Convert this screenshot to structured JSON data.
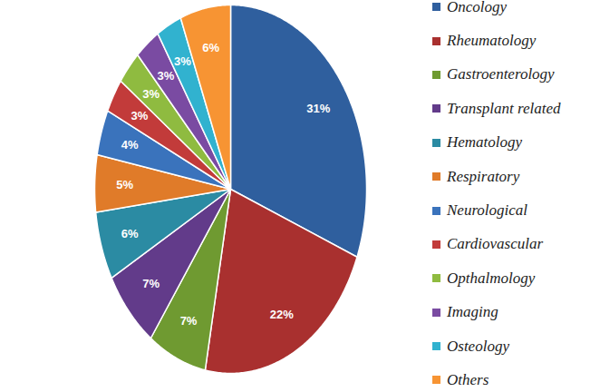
{
  "chart_data": {
    "type": "pie",
    "categories": [
      "Oncology",
      "Rheumatology",
      "Gastroenterology",
      "Transplant related",
      "Hematology",
      "Respiratory",
      "Neurological",
      "Cardiovascular",
      "Opthalmology",
      "Imaging",
      "Osteology",
      "Others"
    ],
    "values": [
      31,
      22,
      7,
      7,
      6,
      5,
      4,
      3,
      3,
      3,
      3,
      6
    ],
    "value_labels": [
      "31%",
      "22%",
      "7%",
      "7%",
      "6%",
      "5%",
      "4%",
      "3%",
      "3%",
      "3%",
      "3%",
      "6%"
    ],
    "colors": [
      "#2f5f9e",
      "#a9302f",
      "#6f9a31",
      "#623b8a",
      "#2b8ba3",
      "#e07b29",
      "#3a73bc",
      "#c23b3a",
      "#8fbb40",
      "#7a4ba2",
      "#31b2cf",
      "#f79433"
    ],
    "data_labels": true,
    "legend": "right"
  }
}
